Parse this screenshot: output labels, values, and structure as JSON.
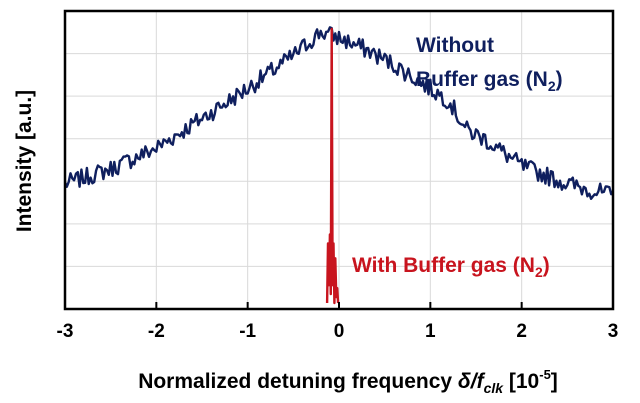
{
  "chart_data": {
    "type": "line",
    "xlabel": {
      "main": "Normalized detuning frequency ",
      "delta": "δ",
      "slash": "/",
      "f": "f",
      "sub": "clk",
      "unit": " [10",
      "unit_exp": "-5",
      "unit_close": "]"
    },
    "ylabel": "Intensity [a.u.]",
    "xlim": [
      -3,
      3
    ],
    "ylim": [
      0,
      1
    ],
    "x_ticks": [
      "-3",
      "-2",
      "-1",
      "0",
      "1",
      "2",
      "3"
    ],
    "x_tick_values": [
      -3,
      -2,
      -1,
      0,
      1,
      2,
      3
    ],
    "y_ticks_labeled": false,
    "grid": true,
    "series": [
      {
        "color": "#0f1f5e",
        "noise_amplitude": 0.03,
        "envelope_x": [
          -3.0,
          -2.5,
          -2.0,
          -1.5,
          -1.0,
          -0.5,
          -0.2,
          0.0,
          0.3,
          0.6,
          1.0,
          1.2,
          1.4,
          1.6,
          2.0,
          2.5,
          3.0
        ],
        "envelope_y": [
          0.42,
          0.47,
          0.54,
          0.64,
          0.74,
          0.85,
          0.93,
          0.91,
          0.87,
          0.82,
          0.74,
          0.7,
          0.6,
          0.57,
          0.48,
          0.42,
          0.38
        ]
      },
      {
        "color": "#c8141e",
        "x": [
          -0.13,
          -0.12,
          -0.11,
          -0.1,
          -0.09,
          -0.08,
          -0.07,
          -0.06,
          -0.05,
          -0.04,
          -0.03,
          -0.02,
          -0.01
        ],
        "y": [
          0.02,
          0.22,
          0.08,
          0.25,
          0.05,
          0.94,
          0.08,
          0.22,
          0.02,
          0.17,
          0.04,
          0.07,
          0.02
        ]
      }
    ],
    "annotations": {
      "without_line1": "Without",
      "without_line2": "Buffer gas (N",
      "without_sub": "2",
      "without_close": ")",
      "with_text": "With Buffer gas (N",
      "with_sub": "2",
      "with_close": ")"
    }
  }
}
